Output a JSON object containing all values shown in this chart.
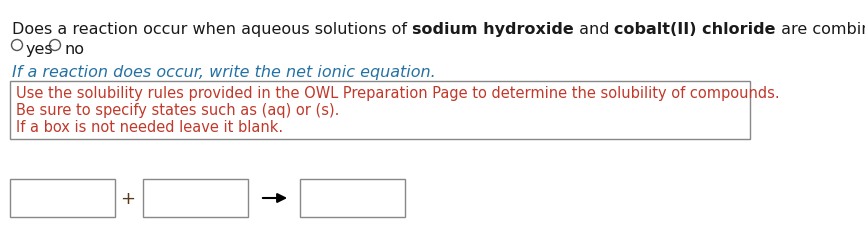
{
  "background_color": "#ffffff",
  "line1_parts": [
    {
      "text": "Does a reaction occur when aqueous solutions of ",
      "bold": false,
      "color": "#1a1a1a"
    },
    {
      "text": "sodium hydroxide",
      "bold": true,
      "color": "#1a1a1a"
    },
    {
      "text": " and ",
      "bold": false,
      "color": "#1a1a1a"
    },
    {
      "text": "cobalt(II) chloride",
      "bold": true,
      "color": "#1a1a1a"
    },
    {
      "text": " are combined?",
      "bold": false,
      "color": "#1a1a1a"
    }
  ],
  "radio_color": "#555555",
  "italic_line": "If a reaction does occur, write the net ionic equation.",
  "italic_color": "#2471a3",
  "box_text_lines": [
    "Use the solubility rules provided in the OWL Preparation Page to determine the solubility of compounds.",
    "Be sure to specify states such as (aq) or (s).",
    "If a box is not needed leave it blank."
  ],
  "box_text_color": "#c0392b",
  "box_border_color": "#888888",
  "fontsize_main": 11.5,
  "fontsize_hint": 10.5
}
